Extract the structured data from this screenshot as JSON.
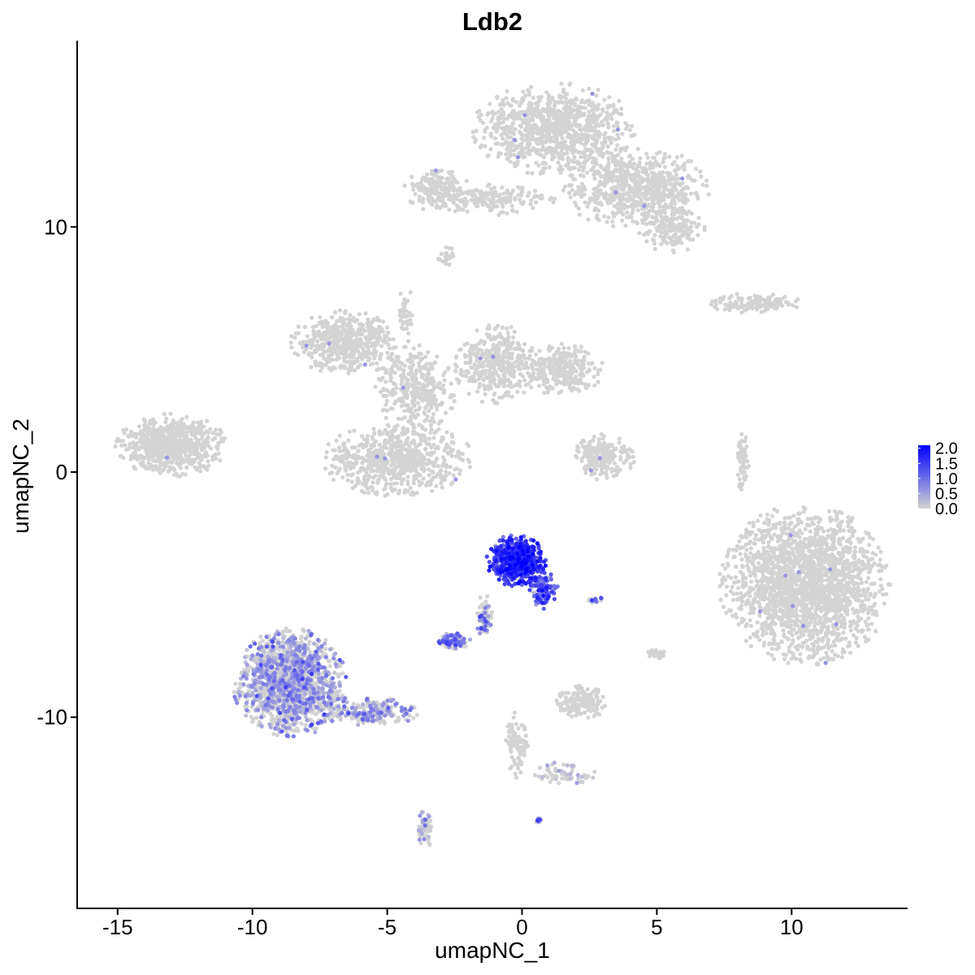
{
  "chart_data": {
    "type": "scatter",
    "title": "Ldb2",
    "xlabel": "umapNC_1",
    "ylabel": "umapNC_2",
    "xlim": [
      -16.5,
      14.3
    ],
    "ylim": [
      -17.8,
      17.6
    ],
    "x_ticks": [
      -15,
      -10,
      -5,
      0,
      5,
      10
    ],
    "x_tick_labels": [
      "-15",
      "-10",
      "-5",
      "0",
      "5",
      "10"
    ],
    "y_ticks": [
      -10,
      0,
      10
    ],
    "y_tick_labels": [
      "-10",
      "0",
      "10"
    ],
    "grid": false,
    "legend": {
      "position": "right",
      "type": "colorbar",
      "min": 0,
      "max": 2.1,
      "labels": [
        "2.0",
        "1.5",
        "1.0",
        "0.5",
        "0.0"
      ],
      "label_values": [
        2.0,
        1.5,
        1.0,
        0.5,
        0.0
      ]
    },
    "colors": {
      "low": "#d3d3d3",
      "high": "#0000ff"
    },
    "clusters": [
      {
        "name": "top-head",
        "cx": 1.2,
        "cy": 14.0,
        "rx": 2.6,
        "ry": 1.6,
        "n": 900,
        "expr": 0.0
      },
      {
        "name": "top-arm-right",
        "cx": 4.2,
        "cy": 11.6,
        "rx": 2.4,
        "ry": 1.4,
        "n": 700,
        "expr": 0.0
      },
      {
        "name": "top-tail-right",
        "cx": 5.6,
        "cy": 9.9,
        "rx": 1.1,
        "ry": 0.8,
        "n": 160,
        "expr": 0.0
      },
      {
        "name": "top-arm-left",
        "cx": -1.5,
        "cy": 11.1,
        "rx": 2.3,
        "ry": 0.55,
        "n": 220,
        "expr": 0.0
      },
      {
        "name": "top-blob-left",
        "cx": -3.2,
        "cy": 11.7,
        "rx": 1.0,
        "ry": 0.6,
        "n": 140,
        "expr": 0.0
      },
      {
        "name": "small-10-left",
        "cx": -2.8,
        "cy": 8.8,
        "rx": 0.3,
        "ry": 0.4,
        "n": 25,
        "expr": 0.0
      },
      {
        "name": "mid-left-lobe",
        "cx": -6.6,
        "cy": 5.3,
        "rx": 1.7,
        "ry": 1.1,
        "n": 500,
        "expr": 0.0
      },
      {
        "name": "mid-center-stem",
        "cx": -4.0,
        "cy": 3.4,
        "rx": 1.3,
        "ry": 1.7,
        "n": 350,
        "expr": 0.0
      },
      {
        "name": "mid-right-lobe",
        "cx": -1.0,
        "cy": 4.4,
        "rx": 1.3,
        "ry": 1.4,
        "n": 380,
        "expr": 0.0
      },
      {
        "name": "mid-far-right",
        "cx": 1.4,
        "cy": 4.2,
        "rx": 1.4,
        "ry": 0.9,
        "n": 300,
        "expr": 0.0
      },
      {
        "name": "mid-lower-bulb",
        "cx": -4.6,
        "cy": 0.5,
        "rx": 2.4,
        "ry": 1.3,
        "n": 650,
        "expr": 0.0
      },
      {
        "name": "mid-spike",
        "cx": -4.3,
        "cy": 6.6,
        "rx": 0.25,
        "ry": 0.9,
        "n": 40,
        "expr": 0.0
      },
      {
        "name": "far-left",
        "cx": -13.0,
        "cy": 1.1,
        "rx": 1.8,
        "ry": 1.1,
        "n": 650,
        "expr": 0.0
      },
      {
        "name": "right-thin-top",
        "cx": 8.6,
        "cy": 6.9,
        "rx": 1.5,
        "ry": 0.35,
        "n": 140,
        "expr": 0.0
      },
      {
        "name": "center-small-right",
        "cx": 3.0,
        "cy": 0.6,
        "rx": 1.0,
        "ry": 0.8,
        "n": 220,
        "expr": 0.0
      },
      {
        "name": "right-strand",
        "cx": 8.2,
        "cy": 0.4,
        "rx": 0.2,
        "ry": 1.2,
        "n": 60,
        "expr": 0.0
      },
      {
        "name": "right-big",
        "cx": 10.5,
        "cy": -4.6,
        "rx": 2.7,
        "ry": 2.8,
        "n": 2000,
        "expr": 0.0
      },
      {
        "name": "ldb2-high",
        "cx": -0.2,
        "cy": -3.6,
        "rx": 0.95,
        "ry": 0.9,
        "n": 600,
        "expr": 1.45
      },
      {
        "name": "ldb2-tail",
        "cx": 0.8,
        "cy": -4.8,
        "rx": 0.45,
        "ry": 0.7,
        "n": 120,
        "expr": 1.1
      },
      {
        "name": "ldb2-stem",
        "cx": -1.4,
        "cy": -5.9,
        "rx": 0.25,
        "ry": 0.8,
        "n": 60,
        "expr": 0.8
      },
      {
        "name": "ldb2-foot",
        "cx": -2.5,
        "cy": -6.9,
        "rx": 0.5,
        "ry": 0.3,
        "n": 110,
        "expr": 0.85
      },
      {
        "name": "ldb2-small",
        "cx": 2.7,
        "cy": -5.2,
        "rx": 0.25,
        "ry": 0.12,
        "n": 20,
        "expr": 0.9
      },
      {
        "name": "bottom-left-big",
        "cx": -8.6,
        "cy": -8.6,
        "rx": 1.8,
        "ry": 1.9,
        "n": 1500,
        "expr": 0.45
      },
      {
        "name": "bottom-left-arm",
        "cx": -5.6,
        "cy": -9.8,
        "rx": 1.6,
        "ry": 0.5,
        "n": 220,
        "expr": 0.45
      },
      {
        "name": "bottom-left-tail",
        "cx": -3.6,
        "cy": -14.6,
        "rx": 0.25,
        "ry": 0.7,
        "n": 60,
        "expr": 0.1
      },
      {
        "name": "bottom-center-strand",
        "cx": -0.2,
        "cy": -11.2,
        "rx": 0.35,
        "ry": 1.2,
        "n": 80,
        "expr": 0.0
      },
      {
        "name": "bottom-center-arm",
        "cx": 1.6,
        "cy": -12.3,
        "rx": 1.0,
        "ry": 0.4,
        "n": 60,
        "expr": 0.05
      },
      {
        "name": "bottom-right-small",
        "cx": 2.2,
        "cy": -9.4,
        "rx": 0.8,
        "ry": 0.6,
        "n": 160,
        "expr": 0.0
      },
      {
        "name": "bottom-mid-dot",
        "cx": 0.6,
        "cy": -14.2,
        "rx": 0.12,
        "ry": 0.12,
        "n": 12,
        "expr": 0.7
      },
      {
        "name": "small-right-pair",
        "cx": 5.0,
        "cy": -7.4,
        "rx": 0.3,
        "ry": 0.2,
        "n": 25,
        "expr": 0.0
      }
    ]
  }
}
